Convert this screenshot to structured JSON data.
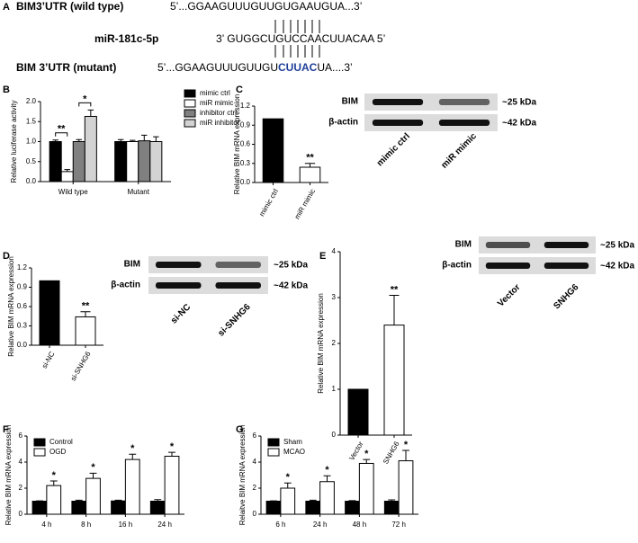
{
  "panels": [
    "A",
    "B",
    "C",
    "D",
    "E",
    "F",
    "G"
  ],
  "sequences": {
    "wild_label": "BIM3’UTR (wild type)",
    "wild_seq": "5’...GGAAGUUUGUUGUGAAUGUA...3’",
    "mirna_label": "miR-181c-5p",
    "mirna_seq": "3’ GUGGCUGUCCAACUUACAA 5’",
    "mutant_label": "BIM 3’UTR (mutant)",
    "mutant_seq": [
      "5’...GGAAGUUUGUUGU",
      "CUUAC",
      "UA....3’"
    ]
  },
  "blots": [
    {
      "rows": [
        "BIM",
        "β-actin"
      ],
      "sizes": [
        "~25 kDa",
        "~42 kDa"
      ],
      "lanes": [
        "mimic ctrl",
        "miR mimic"
      ]
    },
    {
      "rows": [
        "BIM",
        "β-actin"
      ],
      "sizes": [
        "~25 kDa",
        "~42 kDa"
      ],
      "lanes": [
        "si-NC",
        "si-SNHG6"
      ]
    },
    {
      "rows": [
        "BIM",
        "β-actin"
      ],
      "sizes": [
        "~25 kDa",
        "~42 kDa"
      ],
      "lanes": [
        "Vector",
        "SNHG6"
      ]
    }
  ],
  "chart_data": [
    {
      "type": "bar",
      "y_label": "Relative luciferase activity",
      "categories": [
        "Wild type",
        "Mutant"
      ],
      "ylim": [
        0,
        2.0
      ],
      "yticks": [
        {
          "value": 0,
          "label": "0.0"
        },
        0.5,
        {
          "value": 1,
          "label": "1.0"
        },
        1.5,
        {
          "value": 2,
          "label": "2.0"
        }
      ],
      "series": [
        {
          "name": "mimic ctrl",
          "color": "#000000",
          "values": [
            1.0,
            1.0
          ],
          "errors": [
            0.04,
            0.05
          ]
        },
        {
          "name": "miR mimic",
          "color": "#ffffff",
          "values": [
            0.25,
            1.0
          ],
          "errors": [
            0.05,
            0.03
          ],
          "sig_labels": [
            "**",
            null
          ]
        },
        {
          "name": "inhibitor ctrl",
          "color": "#808080",
          "values": [
            1.0,
            1.02
          ],
          "errors": [
            0.05,
            0.14
          ]
        },
        {
          "name": "miR inhibitor",
          "color": "#d3d3d3",
          "values": [
            1.63,
            1.0
          ],
          "errors": [
            0.16,
            0.12
          ],
          "sig_labels": [
            "*",
            null
          ]
        }
      ]
    },
    {
      "type": "bar",
      "y_label": "Relative BIM mRNA expression",
      "categories": [
        "mimic ctrl",
        "miR mimic"
      ],
      "ylim": [
        0,
        1.2
      ],
      "yticks": [
        {
          "value": 0,
          "label": "0.0"
        },
        0.3,
        0.6,
        0.9,
        1.2
      ],
      "series": [
        {
          "colors": [
            "#000000",
            "#ffffff"
          ],
          "values": [
            1.0,
            0.24
          ],
          "errors": [
            0,
            0.06
          ],
          "sig_labels": [
            null,
            "**"
          ]
        }
      ]
    },
    {
      "type": "bar",
      "y_label": "Relative BIM mRNA expression",
      "categories": [
        "si-NC",
        "si-SNHG6"
      ],
      "ylim": [
        0,
        1.2
      ],
      "yticks": [
        {
          "value": 0,
          "label": "0.0"
        },
        0.3,
        0.6,
        0.9,
        1.2
      ],
      "series": [
        {
          "colors": [
            "#000000",
            "#ffffff"
          ],
          "values": [
            1.0,
            0.44
          ],
          "errors": [
            0,
            0.08
          ],
          "sig_labels": [
            null,
            "**"
          ]
        }
      ]
    },
    {
      "type": "bar",
      "y_label": "Relative BIM mRNA expression",
      "categories": [
        "Vector",
        "SNHG6"
      ],
      "ylim": [
        0,
        4
      ],
      "yticks": [
        0,
        1,
        2,
        3,
        4
      ],
      "series": [
        {
          "colors": [
            "#000000",
            "#ffffff"
          ],
          "values": [
            1.0,
            2.4
          ],
          "errors": [
            0,
            0.65
          ],
          "sig_labels": [
            null,
            "**"
          ]
        }
      ]
    },
    {
      "type": "bar",
      "y_label": "Relative BIM mRNA expression",
      "categories": [
        "4 h",
        "8 h",
        "16 h",
        "24 h"
      ],
      "ylim": [
        0,
        6
      ],
      "yticks": [
        0,
        2,
        4,
        6
      ],
      "series": [
        {
          "name": "Control",
          "color": "#000000",
          "values": [
            1.0,
            1.0,
            1.02,
            1.0
          ],
          "errors": [
            0.03,
            0.08,
            0.06,
            0.12
          ]
        },
        {
          "name": "OGD",
          "color": "#ffffff",
          "values": [
            2.2,
            2.75,
            4.2,
            4.45
          ],
          "errors": [
            0.35,
            0.4,
            0.4,
            0.3
          ],
          "sig_labels": [
            "*",
            "*",
            "*",
            "*"
          ]
        }
      ]
    },
    {
      "type": "bar",
      "y_label": "Relaitve BIM mRNA expression",
      "categories": [
        "6 h",
        "24 h",
        "48 h",
        "72 h"
      ],
      "ylim": [
        0,
        6
      ],
      "yticks": [
        0,
        2,
        4,
        6
      ],
      "series": [
        {
          "name": "Sham",
          "color": "#000000",
          "values": [
            1.0,
            1.0,
            1.0,
            1.0
          ],
          "errors": [
            0.03,
            0.08,
            0.04,
            0.1
          ]
        },
        {
          "name": "MCAO",
          "color": "#ffffff",
          "values": [
            2.0,
            2.5,
            3.9,
            4.1
          ],
          "errors": [
            0.4,
            0.45,
            0.3,
            0.8
          ],
          "sig_labels": [
            "*",
            "*",
            "*",
            "*"
          ]
        }
      ]
    }
  ]
}
